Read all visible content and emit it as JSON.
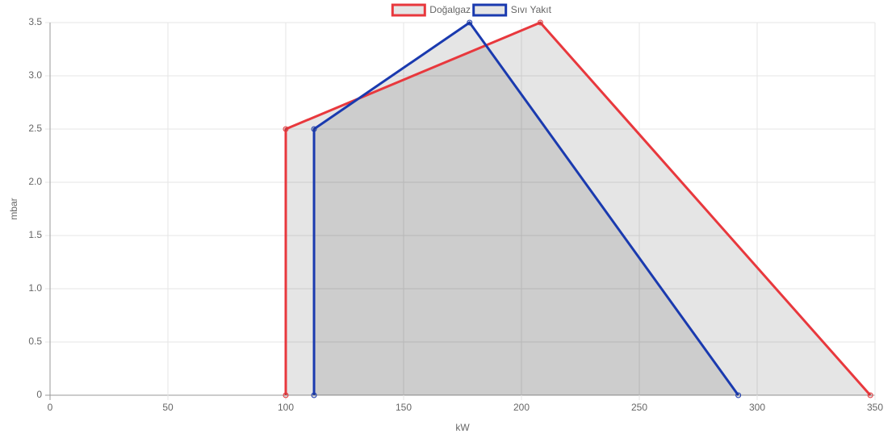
{
  "chart_data": {
    "type": "line",
    "x_label": "kW",
    "y_label": "mbar",
    "series": [
      {
        "name": "Doğalgaz",
        "color": "#e8383d",
        "x": [
          100,
          100,
          208,
          348
        ],
        "values": [
          0,
          2.5,
          3.5,
          0
        ]
      },
      {
        "name": "Sıvı Yakıt",
        "color": "#1a3aaf",
        "x": [
          112,
          112,
          178,
          292
        ],
        "values": [
          0,
          2.5,
          3.5,
          0
        ]
      }
    ],
    "fill": true,
    "fill_color": "rgba(0,0,0,0.1)",
    "xlim": [
      0,
      350
    ],
    "xticks": [
      0,
      50,
      100,
      150,
      200,
      250,
      300,
      350
    ],
    "ylim": [
      0,
      3.5
    ],
    "yticks": [
      0,
      0.5,
      {
        "value": 1,
        "label": "1.0"
      },
      1.5,
      {
        "value": 2,
        "label": "2.0"
      },
      2.5,
      {
        "value": 3,
        "label": "3.0"
      },
      3.5
    ],
    "grid": true,
    "legend": "top"
  }
}
